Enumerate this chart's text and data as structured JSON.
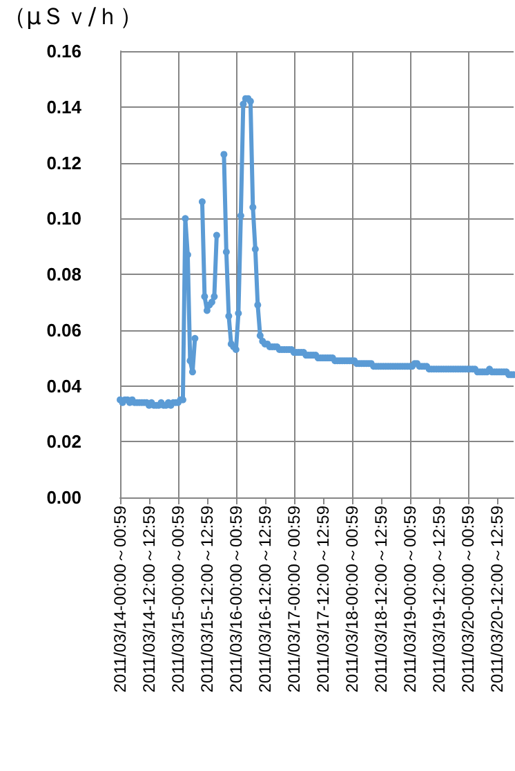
{
  "chart_data": {
    "type": "line",
    "ylabel": "（μＳｖ/ｈ）",
    "categories": [
      "2011/03/14-00:00～00:59",
      null,
      null,
      null,
      null,
      null,
      null,
      null,
      null,
      null,
      null,
      null,
      "2011/03/14-12:00～12:59",
      null,
      null,
      null,
      null,
      null,
      null,
      null,
      null,
      null,
      null,
      null,
      "2011/03/15-00:00～00:59",
      null,
      null,
      null,
      null,
      null,
      null,
      null,
      null,
      null,
      null,
      null,
      "2011/03/15-12:00～12:59",
      null,
      null,
      null,
      null,
      null,
      null,
      null,
      null,
      null,
      null,
      null,
      "2011/03/16-00:00～00:59",
      null,
      null,
      null,
      null,
      null,
      null,
      null,
      null,
      null,
      null,
      null,
      "2011/03/16-12:00～12:59",
      null,
      null,
      null,
      null,
      null,
      null,
      null,
      null,
      null,
      null,
      null,
      "2011/03/17-00:00～00:59",
      null,
      null,
      null,
      null,
      null,
      null,
      null,
      null,
      null,
      null,
      null,
      "2011/03/17-12:00～12:59",
      null,
      null,
      null,
      null,
      null,
      null,
      null,
      null,
      null,
      null,
      null,
      "2011/03/18-00:00～00:59",
      null,
      null,
      null,
      null,
      null,
      null,
      null,
      null,
      null,
      null,
      null,
      "2011/03/18-12:00～12:59",
      null,
      null,
      null,
      null,
      null,
      null,
      null,
      null,
      null,
      null,
      null,
      "2011/03/19-00:00～00:59",
      null,
      null,
      null,
      null,
      null,
      null,
      null,
      null,
      null,
      null,
      null,
      "2011/03/19-12:00～12:59",
      null,
      null,
      null,
      null,
      null,
      null,
      null,
      null,
      null,
      null,
      null,
      "2011/03/20-00:00～00:59",
      null,
      null,
      null,
      null,
      null,
      null,
      null,
      null,
      null,
      null,
      null,
      "2011/03/20-12:00～12:59",
      null,
      null,
      null,
      null,
      null,
      null,
      null
    ],
    "series": [
      {
        "color": "#5b9bd5",
        "values": [
          0.035,
          0.034,
          0.035,
          0.035,
          0.034,
          0.035,
          0.034,
          0.034,
          0.034,
          0.034,
          0.034,
          0.034,
          0.033,
          0.034,
          0.033,
          0.033,
          0.033,
          0.034,
          0.033,
          0.033,
          0.034,
          0.033,
          0.034,
          0.034,
          0.034,
          0.035,
          0.035,
          0.1,
          0.087,
          0.049,
          0.045,
          0.057,
          null,
          null,
          0.106,
          0.072,
          0.067,
          0.069,
          0.07,
          0.072,
          0.094,
          null,
          null,
          0.123,
          0.088,
          0.065,
          0.055,
          0.054,
          0.053,
          0.066,
          0.101,
          0.141,
          0.143,
          0.143,
          0.142,
          0.104,
          0.089,
          0.069,
          0.058,
          0.056,
          0.055,
          0.055,
          0.054,
          0.054,
          0.054,
          0.054,
          0.053,
          0.053,
          0.053,
          0.053,
          0.053,
          0.053,
          0.052,
          0.052,
          0.052,
          0.052,
          0.052,
          0.051,
          0.051,
          0.051,
          0.051,
          0.051,
          0.05,
          0.05,
          0.05,
          0.05,
          0.05,
          0.05,
          0.05,
          0.049,
          0.049,
          0.049,
          0.049,
          0.049,
          0.049,
          0.049,
          0.049,
          0.049,
          0.048,
          0.048,
          0.048,
          0.048,
          0.048,
          0.048,
          0.048,
          0.047,
          0.047,
          0.047,
          0.047,
          0.047,
          0.047,
          0.047,
          0.047,
          0.047,
          0.047,
          0.047,
          0.047,
          0.047,
          0.047,
          0.047,
          0.047,
          0.047,
          0.048,
          0.048,
          0.047,
          0.047,
          0.047,
          0.047,
          0.046,
          0.046,
          0.046,
          0.046,
          0.046,
          0.046,
          0.046,
          0.046,
          0.046,
          0.046,
          0.046,
          0.046,
          0.046,
          0.046,
          0.046,
          0.046,
          0.046,
          0.046,
          0.046,
          0.046,
          0.045,
          0.045,
          0.045,
          0.045,
          0.045,
          0.046,
          0.045,
          0.045,
          0.045,
          0.045,
          0.045,
          0.045,
          0.045,
          0.044,
          0.044,
          0.044
        ]
      }
    ],
    "ylim": [
      0,
      0.16
    ],
    "yticks": [
      {
        "value": 0,
        "label": "0.00"
      },
      {
        "value": 0.02,
        "label": "0.02"
      },
      {
        "value": 0.04,
        "label": "0.04"
      },
      {
        "value": 0.06,
        "label": "0.06"
      },
      {
        "value": 0.08,
        "label": "0.08"
      },
      {
        "value": 0.1,
        "label": "0.10"
      },
      {
        "value": 0.12,
        "label": "0.12"
      },
      {
        "value": 0.14,
        "label": "0.14"
      },
      {
        "value": 0.16,
        "label": "0.16"
      }
    ],
    "grid": true,
    "marker": "circle",
    "line_style": "solid"
  }
}
